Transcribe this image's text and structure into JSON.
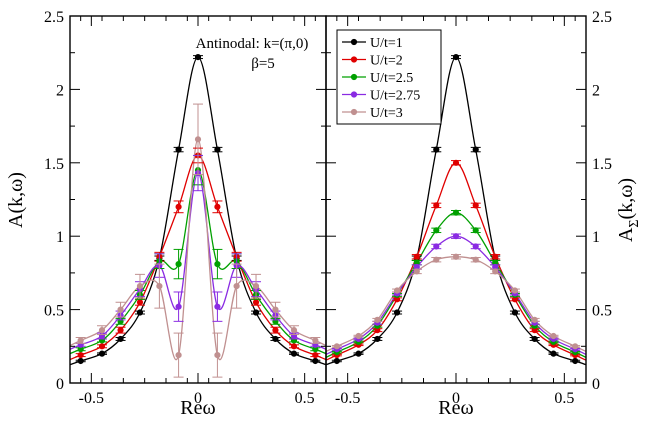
{
  "chart_data": [
    {
      "type": "line",
      "panel": "left",
      "xlabel": "Reω",
      "ylabel": "A(k,ω)",
      "xlim": [
        -0.6,
        0.6
      ],
      "ylim": [
        0,
        2.5
      ],
      "xticks": [
        "-0.5",
        "0",
        "0.5"
      ],
      "yticks": [
        "0",
        "0.5",
        "1",
        "1.5",
        "2",
        "2.5"
      ],
      "annotations": [
        "Antinodal: k=(π,0)",
        "β=5"
      ],
      "grid": false,
      "series": [
        {
          "name": "U/t=1",
          "color": "#000000",
          "x": [
            -0.55,
            -0.45,
            -0.363,
            -0.272,
            -0.181,
            -0.091,
            0,
            0.091,
            0.181,
            0.272,
            0.363,
            0.45,
            0.55
          ],
          "y": [
            0.15,
            0.2,
            0.3,
            0.48,
            0.85,
            1.59,
            2.22,
            1.59,
            0.85,
            0.48,
            0.3,
            0.2,
            0.15
          ],
          "err": [
            0.005,
            0.005,
            0.01,
            0.01,
            0.015,
            0.015,
            0.01,
            0.015,
            0.015,
            0.01,
            0.01,
            0.005,
            0.005
          ]
        },
        {
          "name": "U/t=2",
          "color": "#e00000",
          "x": [
            -0.55,
            -0.45,
            -0.363,
            -0.272,
            -0.181,
            -0.091,
            0,
            0.091,
            0.181,
            0.272,
            0.363,
            0.45,
            0.55
          ],
          "y": [
            0.19,
            0.25,
            0.36,
            0.55,
            0.86,
            1.2,
            1.55,
            1.2,
            0.86,
            0.55,
            0.36,
            0.25,
            0.19
          ],
          "err": [
            0.01,
            0.01,
            0.02,
            0.02,
            0.03,
            0.04,
            0.05,
            0.04,
            0.03,
            0.02,
            0.02,
            0.01,
            0.01
          ]
        },
        {
          "name": "U/t=2.5",
          "color": "#00a000",
          "x": [
            -0.55,
            -0.45,
            -0.363,
            -0.272,
            -0.181,
            -0.091,
            0,
            0.091,
            0.181,
            0.272,
            0.363,
            0.45,
            0.55
          ],
          "y": [
            0.23,
            0.29,
            0.42,
            0.6,
            0.83,
            0.81,
            1.45,
            0.81,
            0.83,
            0.6,
            0.42,
            0.29,
            0.23
          ],
          "err": [
            0.01,
            0.01,
            0.02,
            0.03,
            0.05,
            0.1,
            0.1,
            0.1,
            0.05,
            0.03,
            0.02,
            0.01,
            0.01
          ]
        },
        {
          "name": "U/t=2.75",
          "color": "#8a2be2",
          "x": [
            -0.55,
            -0.45,
            -0.363,
            -0.272,
            -0.181,
            -0.091,
            0,
            0.091,
            0.181,
            0.272,
            0.363,
            0.45,
            0.55
          ],
          "y": [
            0.26,
            0.32,
            0.46,
            0.64,
            0.8,
            0.52,
            1.43,
            0.52,
            0.8,
            0.64,
            0.46,
            0.32,
            0.26
          ],
          "err": [
            0.01,
            0.02,
            0.03,
            0.05,
            0.08,
            0.1,
            0.12,
            0.1,
            0.08,
            0.05,
            0.03,
            0.02,
            0.01
          ]
        },
        {
          "name": "U/t=3",
          "color": "#c09090",
          "x": [
            -0.55,
            -0.45,
            -0.363,
            -0.272,
            -0.181,
            -0.091,
            0,
            0.091,
            0.181,
            0.272,
            0.363,
            0.45,
            0.55
          ],
          "y": [
            0.29,
            0.36,
            0.5,
            0.66,
            0.66,
            0.19,
            1.66,
            0.19,
            0.66,
            0.66,
            0.5,
            0.36,
            0.29
          ],
          "err": [
            0.02,
            0.03,
            0.05,
            0.08,
            0.15,
            0.15,
            0.24,
            0.15,
            0.15,
            0.08,
            0.05,
            0.03,
            0.02
          ]
        }
      ]
    },
    {
      "type": "line",
      "panel": "right",
      "xlabel": "Reω",
      "ylabel": "AΣ(k,ω)",
      "ylabel_main": "A",
      "ylabel_sub": "Σ",
      "ylabel_tail": "(k,ω)",
      "xlim": [
        -0.6,
        0.6
      ],
      "ylim": [
        0,
        2.5
      ],
      "xticks": [
        "-0.5",
        "0",
        "0.5"
      ],
      "yticks": [
        "0",
        "0.5",
        "1",
        "1.5",
        "2",
        "2.5"
      ],
      "legend_position": "top-left",
      "grid": false,
      "series": [
        {
          "name": "U/t=1",
          "color": "#000000",
          "x": [
            -0.55,
            -0.45,
            -0.363,
            -0.272,
            -0.181,
            -0.091,
            0,
            0.091,
            0.181,
            0.272,
            0.363,
            0.45,
            0.55
          ],
          "y": [
            0.15,
            0.2,
            0.3,
            0.48,
            0.85,
            1.59,
            2.22,
            1.59,
            0.85,
            0.48,
            0.3,
            0.2,
            0.15
          ],
          "err": [
            0.005,
            0.005,
            0.01,
            0.01,
            0.015,
            0.015,
            0.01,
            0.015,
            0.015,
            0.01,
            0.01,
            0.005,
            0.005
          ]
        },
        {
          "name": "U/t=2",
          "color": "#e00000",
          "x": [
            -0.55,
            -0.45,
            -0.363,
            -0.272,
            -0.181,
            -0.091,
            0,
            0.091,
            0.181,
            0.272,
            0.363,
            0.45,
            0.55
          ],
          "y": [
            0.19,
            0.26,
            0.36,
            0.57,
            0.86,
            1.21,
            1.5,
            1.21,
            0.86,
            0.57,
            0.36,
            0.26,
            0.19
          ],
          "err": [
            0.005,
            0.005,
            0.01,
            0.01,
            0.015,
            0.015,
            0.015,
            0.015,
            0.015,
            0.01,
            0.01,
            0.005,
            0.005
          ]
        },
        {
          "name": "U/t=2.5",
          "color": "#00a000",
          "x": [
            -0.55,
            -0.45,
            -0.363,
            -0.272,
            -0.181,
            -0.091,
            0,
            0.091,
            0.181,
            0.272,
            0.363,
            0.45,
            0.55
          ],
          "y": [
            0.21,
            0.28,
            0.39,
            0.6,
            0.82,
            1.04,
            1.16,
            1.04,
            0.82,
            0.6,
            0.39,
            0.28,
            0.21
          ],
          "err": [
            0.005,
            0.005,
            0.01,
            0.01,
            0.015,
            0.015,
            0.015,
            0.015,
            0.015,
            0.01,
            0.01,
            0.005,
            0.005
          ]
        },
        {
          "name": "U/t=2.75",
          "color": "#8a2be2",
          "x": [
            -0.55,
            -0.45,
            -0.363,
            -0.272,
            -0.181,
            -0.091,
            0,
            0.091,
            0.181,
            0.272,
            0.363,
            0.45,
            0.55
          ],
          "y": [
            0.23,
            0.3,
            0.41,
            0.61,
            0.79,
            0.93,
            1.0,
            0.93,
            0.79,
            0.61,
            0.41,
            0.3,
            0.23
          ],
          "err": [
            0.005,
            0.005,
            0.01,
            0.01,
            0.015,
            0.015,
            0.015,
            0.015,
            0.015,
            0.01,
            0.01,
            0.005,
            0.005
          ]
        },
        {
          "name": "U/t=3",
          "color": "#c09090",
          "x": [
            -0.55,
            -0.45,
            -0.363,
            -0.272,
            -0.181,
            -0.091,
            0,
            0.091,
            0.181,
            0.272,
            0.363,
            0.45,
            0.55
          ],
          "y": [
            0.25,
            0.32,
            0.43,
            0.63,
            0.76,
            0.84,
            0.86,
            0.84,
            0.76,
            0.63,
            0.43,
            0.32,
            0.25
          ],
          "err": [
            0.005,
            0.005,
            0.01,
            0.01,
            0.015,
            0.015,
            0.015,
            0.015,
            0.015,
            0.01,
            0.01,
            0.005,
            0.005
          ]
        }
      ]
    }
  ]
}
